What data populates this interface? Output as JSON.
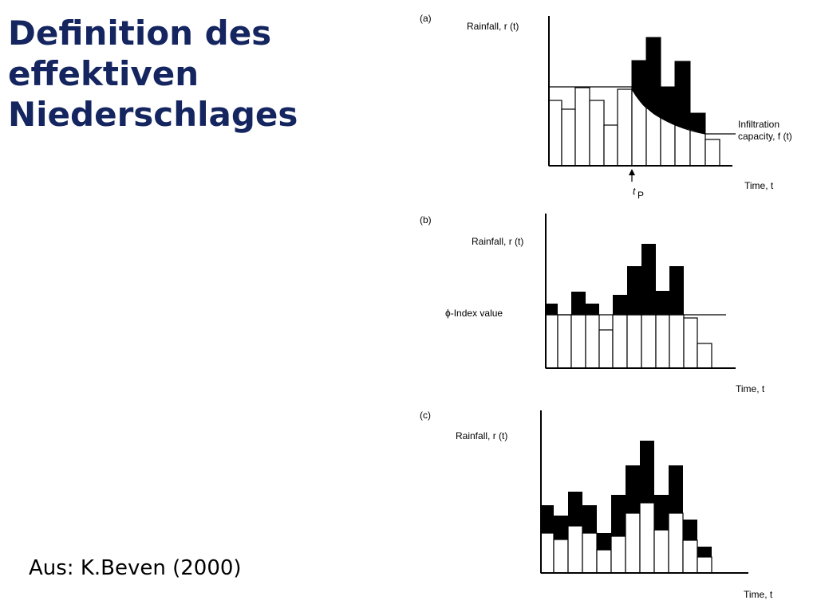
{
  "slide": {
    "title_lines": [
      "Definition des",
      "effektiven",
      "Niederschlages"
    ],
    "source": "Aus: K.Beven (2000)"
  },
  "colors": {
    "title": "#14255f",
    "ink": "#000000",
    "paper": "#ffffff"
  },
  "panels": {
    "a": {
      "tag": "(a)",
      "rainfall_label": "Rainfall, r (t)",
      "infiltration_label_1": "Infiltration",
      "infiltration_label_2": "capacity, f (t)",
      "time_label": "Time, t",
      "ponding_label": "t",
      "ponding_subscript": "P"
    },
    "b": {
      "tag": "(b)",
      "rainfall_label": "Rainfall, r (t)",
      "phi_label": "ϕ-Index value",
      "time_label": "Time, t"
    },
    "c": {
      "tag": "(c)",
      "rainfall_label": "Rainfall, r (t)",
      "time_label": "Time, t"
    }
  }
}
